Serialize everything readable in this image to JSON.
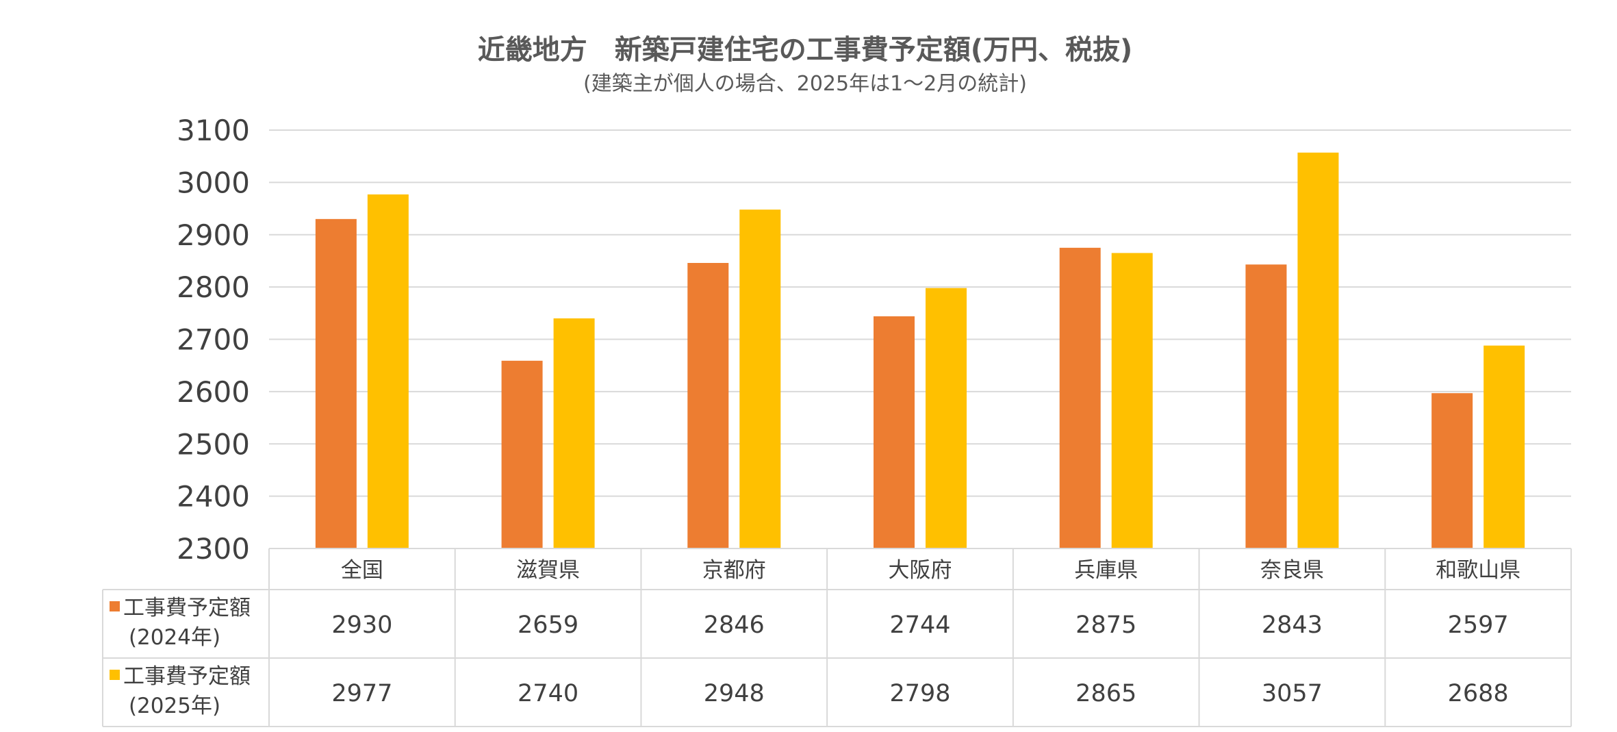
{
  "chart_data": {
    "type": "bar",
    "title": "近畿地方　新築戸建住宅の工事費予定額(万円、税抜)",
    "subtitle": "(建築主が個人の場合、2025年は1～2月の統計)",
    "categories": [
      "全国",
      "滋賀県",
      "京都府",
      "大阪府",
      "兵庫県",
      "奈良県",
      "和歌山県"
    ],
    "series": [
      {
        "name": "工事費予定額",
        "name_line2": "(2024年)",
        "color": "#ED7D31",
        "values": [
          2930,
          2659,
          2846,
          2744,
          2875,
          2843,
          2597
        ]
      },
      {
        "name": "工事費予定額",
        "name_line2": "(2025年)",
        "color": "#FFC000",
        "values": [
          2977,
          2740,
          2948,
          2798,
          2865,
          3057,
          2688
        ]
      }
    ],
    "ylim": [
      2300,
      3100
    ],
    "yticks": [
      2300,
      2400,
      2500,
      2600,
      2700,
      2800,
      2900,
      3000,
      3100
    ],
    "grid": true,
    "legend": "data-table"
  }
}
